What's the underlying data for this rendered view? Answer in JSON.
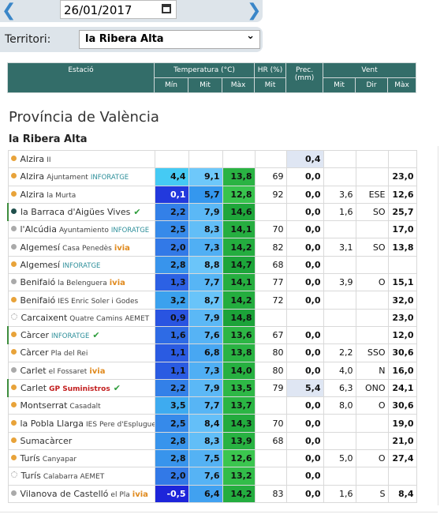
{
  "date": "26/01/2017",
  "filter": {
    "label": "Territori:",
    "value": "la Ribera Alta"
  },
  "table": {
    "header_top": [
      "Estació",
      "Temperatura (°C)",
      "HR (%)",
      "Prec. (mm)",
      "Vent"
    ],
    "header_sub": [
      "Mín",
      "Mit",
      "Màx",
      "Mit",
      "Mit",
      "Dir",
      "Màx"
    ],
    "province": "Província de València",
    "region": "la Ribera Alta",
    "rows": [
      {
        "name": "Alzira",
        "place": "II",
        "dot": "#e8a33a",
        "cells": [
          null,
          null,
          null,
          null,
          "0,4",
          null,
          null,
          null
        ]
      },
      {
        "name": "Alzira",
        "place": "Ajuntament",
        "tag": "INFORATGE",
        "dot": "#e8a33a",
        "cells": [
          "4,4",
          "9,1",
          "13,8",
          "69",
          "0,0",
          null,
          null,
          "23,0"
        ]
      },
      {
        "name": "Alzira",
        "place": "la Murta",
        "dot": "#e8a33a",
        "cells": [
          "0,1",
          "5,7",
          "12,8",
          "92",
          "0,0",
          "3,6",
          "ESE",
          "12,6"
        ]
      },
      {
        "name": "la Barraca d'Aigües Vives",
        "dot": "#1f4f4c",
        "verified": true,
        "cells": [
          "2,2",
          "7,9",
          "14,6",
          null,
          "0,0",
          "1,6",
          "SO",
          "25,7"
        ]
      },
      {
        "name": "l'Alcúdia",
        "place": "Ayuntamiento",
        "tag": "INFORATGE",
        "dot": "#aaaaaa",
        "cells": [
          "2,5",
          "8,3",
          "14,1",
          "70",
          "0,0",
          null,
          null,
          "17,0"
        ]
      },
      {
        "name": "Algemesí",
        "place": "Casa Penedès",
        "tag": "ivia",
        "dot": "#aaaaaa",
        "cells": [
          "2,0",
          "7,3",
          "14,2",
          "82",
          "0,0",
          "3,1",
          "SO",
          "13,8"
        ]
      },
      {
        "name": "Algemesí",
        "tag": "INFORATGE",
        "dot": "#e8a33a",
        "cells": [
          "2,8",
          "8,8",
          "14,7",
          "68",
          "0,0",
          null,
          null,
          null
        ]
      },
      {
        "name": "Benifaió",
        "place": "la Belenguera",
        "tag": "ivia",
        "dot": "#aaaaaa",
        "cells": [
          "1,3",
          "7,7",
          "14,1",
          "77",
          "0,0",
          "3,9",
          "O",
          "15,1"
        ]
      },
      {
        "name": "Benifaió",
        "place": "IES Enric Soler i Godes",
        "dot": "#e8a33a",
        "cells": [
          "3,2",
          "8,7",
          "14,2",
          "72",
          "0,0",
          null,
          null,
          "32,0"
        ]
      },
      {
        "name": "Carcaixent",
        "place": "Quatre Camins AEMET",
        "dot": "#ffffff",
        "cells": [
          "0,9",
          "7,9",
          "14,8",
          null,
          null,
          null,
          null,
          "23,0"
        ]
      },
      {
        "name": "Càrcer",
        "tag": "INFORATGE",
        "dot": "#e8a33a",
        "verified": true,
        "cells": [
          "1,6",
          "7,6",
          "13,6",
          "67",
          "0,0",
          null,
          null,
          "12,0"
        ]
      },
      {
        "name": "Càrcer",
        "place": "Pla del Rei",
        "dot": "#e8a33a",
        "cells": [
          "1,1",
          "6,8",
          "13,8",
          "80",
          "0,0",
          "2,2",
          "SSO",
          "30,6"
        ]
      },
      {
        "name": "Carlet",
        "place": "el Fossaret",
        "tag": "ivia",
        "dot": "#aaaaaa",
        "cells": [
          "1,1",
          "7,3",
          "14,0",
          "80",
          "0,0",
          "4,0",
          "N",
          "16,0"
        ]
      },
      {
        "name": "Carlet",
        "tag": "GP Suministros",
        "dot": "#e8a33a",
        "verified": true,
        "cells": [
          "2,2",
          "7,9",
          "13,5",
          "79",
          "5,4",
          "6,3",
          "ONO",
          "24,1"
        ]
      },
      {
        "name": "Montserrat",
        "place": "Casadalt",
        "dot": "#e8a33a",
        "cells": [
          "3,5",
          "7,7",
          "13,7",
          null,
          "0,0",
          "8,0",
          "O",
          "30,6"
        ]
      },
      {
        "name": "la Pobla Llarga",
        "place": "IES Pere d'Esplugues",
        "dot": "#e8a33a",
        "cells": [
          "2,5",
          "8,4",
          "14,3",
          "70",
          "0,0",
          null,
          null,
          "19,0"
        ]
      },
      {
        "name": "Sumacàrcer",
        "dot": "#e8a33a",
        "cells": [
          "2,8",
          "8,3",
          "13,9",
          "68",
          "0,0",
          null,
          null,
          "21,0"
        ]
      },
      {
        "name": "Turís",
        "place": "Canyapar",
        "dot": "#e8a33a",
        "cells": [
          "2,8",
          "7,5",
          "12,6",
          null,
          "0,0",
          "5,0",
          "O",
          "27,4"
        ]
      },
      {
        "name": "Turís",
        "place": "Calabarra AEMET",
        "dot": "#ffffff",
        "cells": [
          "2,0",
          "7,6",
          "13,2",
          null,
          "0,0",
          null,
          null,
          null
        ]
      },
      {
        "name": "Vilanova de Castelló",
        "place": "el Pla",
        "tag": "ivia",
        "dot": "#aaaaaa",
        "cells": [
          "-0,5",
          "6,4",
          "14,2",
          "83",
          "0,0",
          "1,6",
          "S",
          "8,4"
        ]
      }
    ]
  }
}
